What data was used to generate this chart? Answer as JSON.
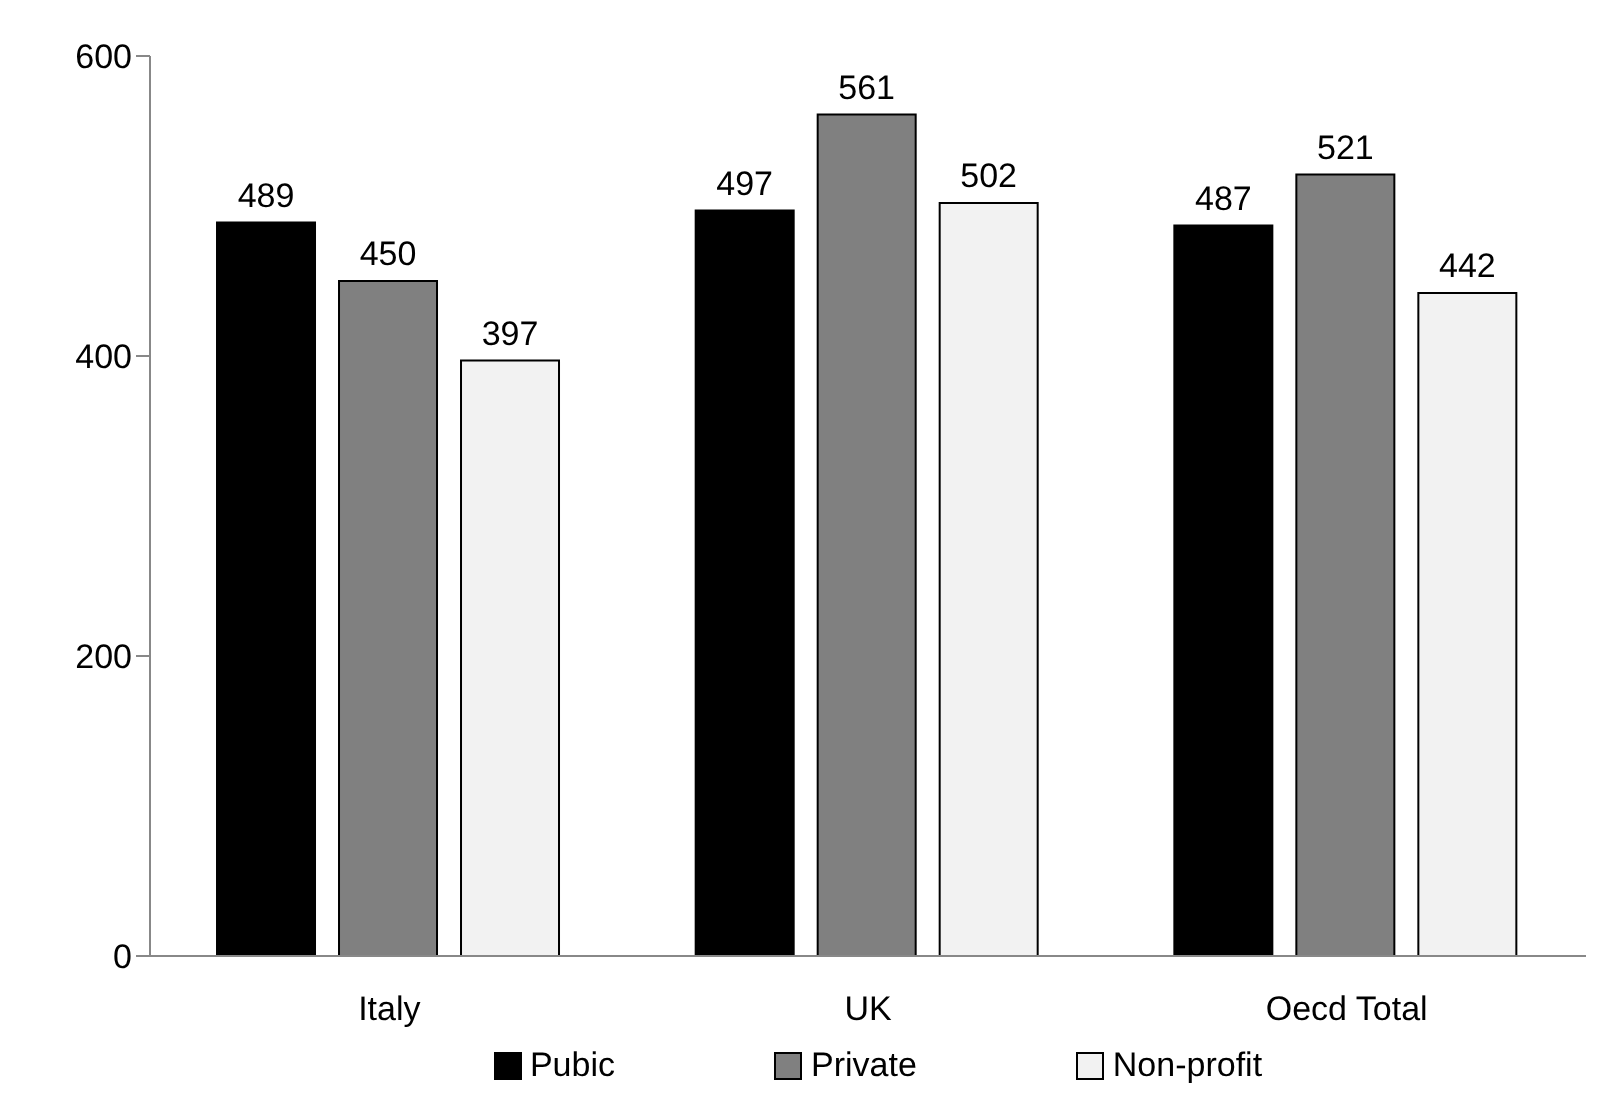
{
  "chart_data": {
    "type": "bar",
    "categories": [
      "Italy",
      "UK",
      "Oecd Total"
    ],
    "series": [
      {
        "name": "Pubic",
        "color": "#000000",
        "values": [
          489,
          497,
          487
        ]
      },
      {
        "name": "Private",
        "color": "#808080",
        "values": [
          450,
          561,
          521
        ]
      },
      {
        "name": "Non-profit",
        "color": "#f2f2f2",
        "values": [
          397,
          502,
          442
        ]
      }
    ],
    "ylim": [
      0,
      600
    ],
    "yticks": [
      0,
      200,
      400,
      600
    ],
    "grid": false,
    "legend": "bottom",
    "data_labels": true
  }
}
